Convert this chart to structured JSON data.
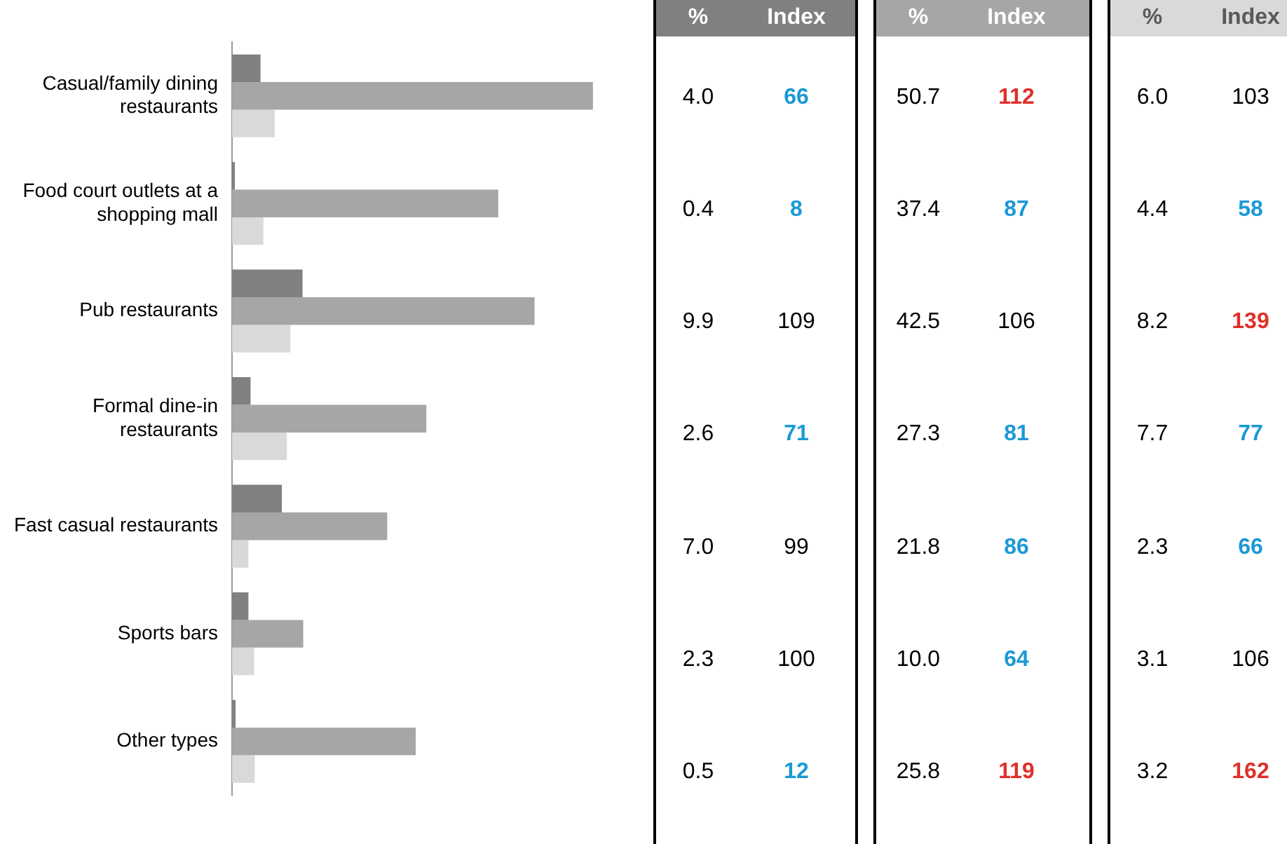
{
  "chart_data": [
    {
      "type": "bar",
      "orientation": "horizontal",
      "xlabel": "%",
      "categories": [
        "Casual/family dining restaurants",
        "Food court outlets at a shopping mall",
        "Pub restaurants",
        "Formal dine-in restaurants",
        "Fast casual restaurants",
        "Sports bars",
        "Other types"
      ],
      "series": [
        {
          "color": "#808080",
          "values": [
            4.0,
            0.4,
            9.9,
            2.6,
            7.0,
            2.3,
            0.5
          ],
          "value_labels": [
            "4.0",
            "0.4",
            "9.9",
            "2.6",
            "7.0",
            "2.3",
            "0.5"
          ]
        },
        {
          "color": "#a6a6a6",
          "values": [
            50.7,
            37.4,
            42.5,
            27.3,
            21.8,
            10.0,
            25.8
          ],
          "value_labels": [
            "50.7",
            "37.4",
            "42.5",
            "27.3",
            "21.8",
            "10.0",
            "25.8"
          ]
        },
        {
          "color": "#d9d9d9",
          "values": [
            6.0,
            4.4,
            8.2,
            7.7,
            2.3,
            3.1,
            3.2
          ],
          "value_labels": [
            "6.0",
            "4.4",
            "8.2",
            "7.7",
            "2.3",
            "3.1",
            "3.2"
          ]
        }
      ]
    },
    {
      "type": "other",
      "annotations": [
        "Index",
        "Index",
        "Index",
        "66",
        "112",
        "103",
        "8",
        "87",
        "58",
        "109",
        "106",
        "139",
        "71",
        "81",
        "77",
        "99",
        "86",
        "66",
        "100",
        "64",
        "106",
        "12",
        "119",
        "162"
      ],
      "colors": [
        "#ffffff",
        "#ffffff",
        "#595959",
        "#1a9ad6",
        "#e0302a",
        "#000000",
        "#1a9ad6",
        "#1a9ad6",
        "#1a9ad6",
        "#000000",
        "#000000",
        "#e0302a",
        "#1a9ad6",
        "#1a9ad6",
        "#1a9ad6",
        "#000000",
        "#1a9ad6",
        "#1a9ad6",
        "#000000",
        "#1a9ad6",
        "#000000",
        "#1a9ad6",
        "#e0302a",
        "#e0302a"
      ]
    }
  ]
}
